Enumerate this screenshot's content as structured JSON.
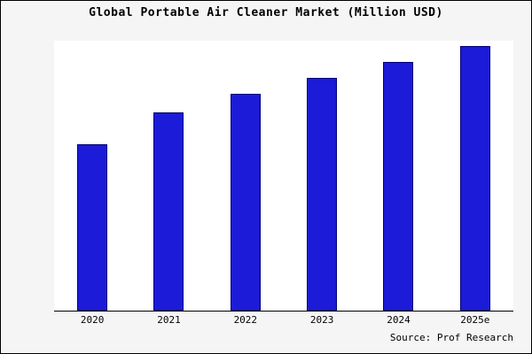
{
  "chart_data": {
    "type": "bar",
    "title": "Global Portable Air Cleaner Market (Million USD)",
    "categories": [
      "2020",
      "2021",
      "2022",
      "2023",
      "2024",
      "2025e"
    ],
    "values": [
      63,
      75,
      82,
      88,
      94,
      100
    ],
    "xlabel": "",
    "ylabel": "",
    "ylim": [
      0,
      102
    ],
    "grid": false,
    "legend": "none",
    "bar_fill": "#1b1bd8",
    "bar_border": "#00007a",
    "plot_background": "#ffffff",
    "outer_background": "#f5f5f5"
  },
  "source": {
    "label": "Source: Prof Research"
  }
}
